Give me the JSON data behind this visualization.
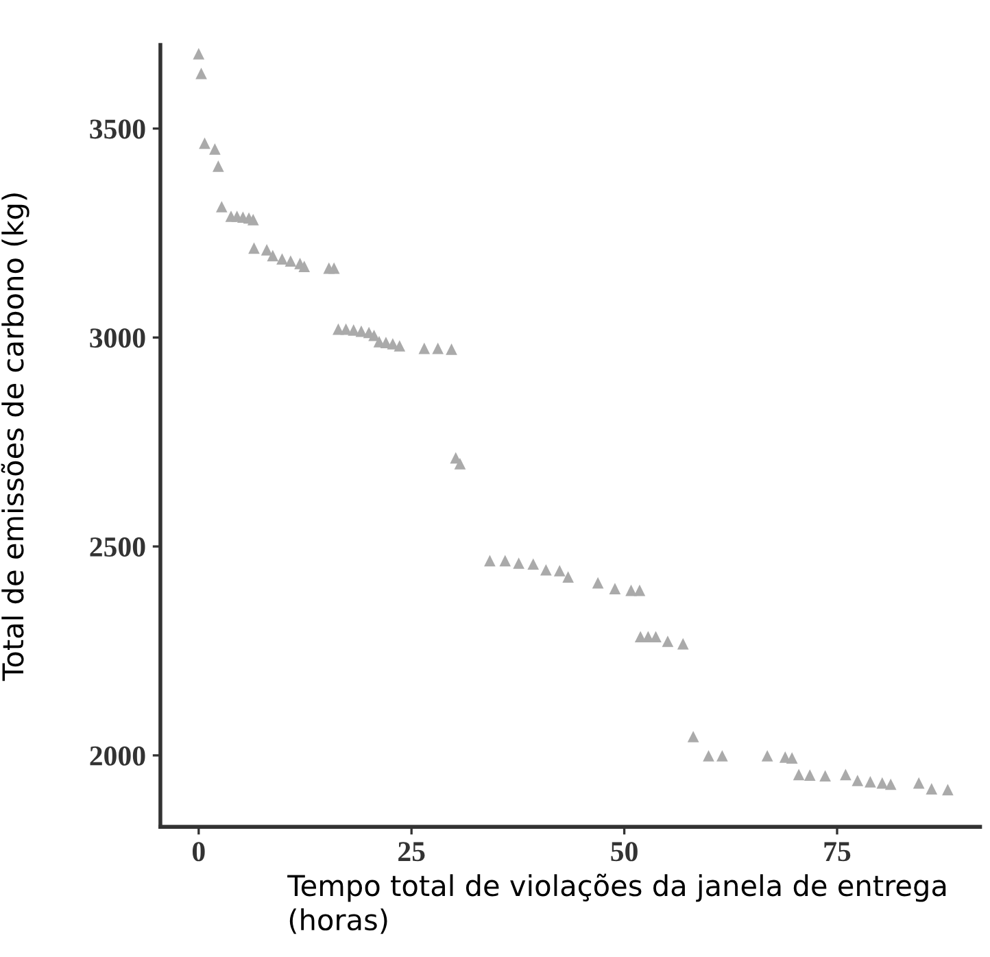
{
  "chart_data": {
    "type": "scatter",
    "xlabel": "Tempo total de violações da janela de entrega\n(horas)",
    "ylabel": "Total de emissões de carbono (kg)",
    "x": [
      0,
      0.3,
      0.7,
      1.9,
      2.3,
      2.7,
      3.8,
      4.5,
      5.2,
      5.9,
      6.4,
      6.5,
      8,
      8.7,
      9.8,
      10.8,
      11.9,
      12.4,
      15.3,
      15.9,
      16.4,
      17.3,
      18.2,
      19.1,
      20.0,
      20.6,
      21.2,
      22.0,
      22.8,
      23.6,
      26.5,
      28.1,
      29.7,
      30.2,
      30.7,
      34.2,
      36.0,
      37.6,
      39.3,
      40.8,
      42.4,
      43.4,
      46.9,
      48.9,
      50.8,
      51.8,
      51.9,
      52.8,
      53.7,
      55.1,
      56.9,
      58.1,
      59.9,
      61.5,
      66.8,
      68.9,
      69.7,
      70.5,
      71.8,
      73.6,
      76.0,
      77.4,
      78.9,
      80.3,
      81.3,
      84.6,
      86.1,
      88.0
    ],
    "series": [
      {
        "color": "#aaaaaa",
        "values": [
          3679,
          3632,
          3465,
          3451,
          3410,
          3313,
          3290,
          3290,
          3288,
          3286,
          3282,
          3214,
          3210,
          3196,
          3188,
          3183,
          3177,
          3170,
          3166,
          3166,
          3020,
          3020,
          3018,
          3015,
          3012,
          3005,
          2990,
          2988,
          2985,
          2980,
          2974,
          2974,
          2972,
          2712,
          2698,
          2466,
          2466,
          2460,
          2458,
          2444,
          2442,
          2427,
          2413,
          2399,
          2395,
          2395,
          2284,
          2284,
          2284,
          2273,
          2267,
          2045,
          1999,
          1999,
          1999,
          1996,
          1994,
          1954,
          1953,
          1951,
          1954,
          1940,
          1937,
          1934,
          1931,
          1934,
          1920,
          1918
        ]
      }
    ],
    "xlim": [
      -4.5,
      91.8
    ],
    "ylim": [
      1829,
      3700
    ],
    "xticks": [
      0,
      25,
      50,
      75
    ],
    "yticks": [
      2000,
      2500,
      3000,
      3500
    ],
    "marker": "triangle",
    "grid": false,
    "legend": false
  }
}
